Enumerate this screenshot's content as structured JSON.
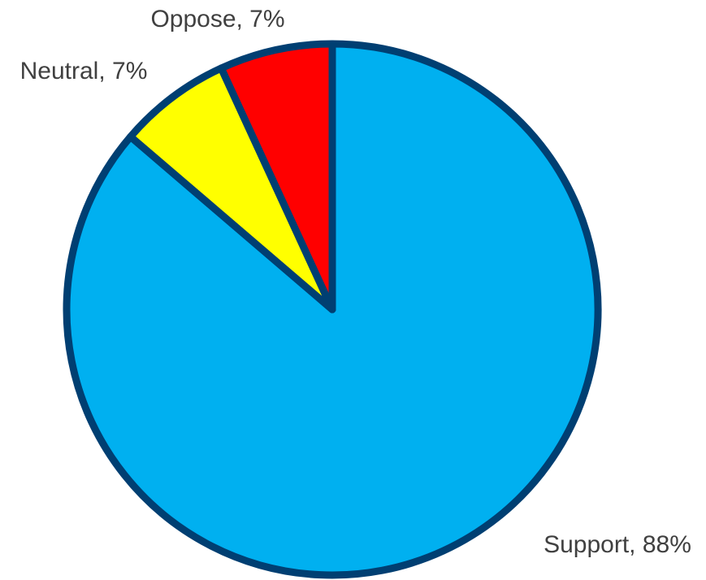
{
  "chart_data": {
    "type": "pie",
    "categories": [
      "Support",
      "Neutral",
      "Oppose"
    ],
    "values": [
      88,
      7,
      7
    ],
    "labels": [
      "Support, 88%",
      "Neutral, 7%",
      "Oppose, 7%"
    ],
    "colors": [
      "#00B0F0",
      "#FFFF00",
      "#FF0000"
    ],
    "edge_color": "#003F72",
    "title": "",
    "legend": "none"
  }
}
